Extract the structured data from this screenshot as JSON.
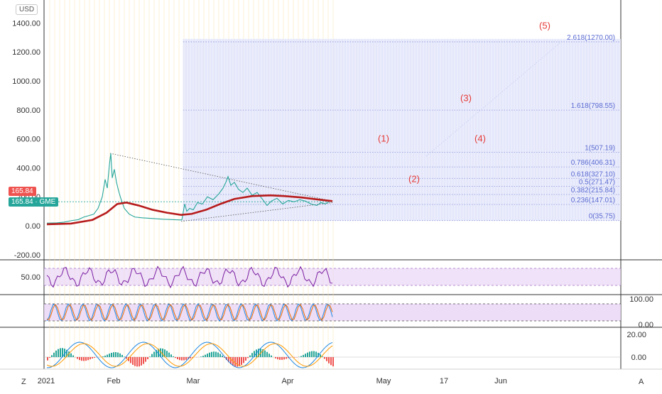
{
  "chart_data": {
    "type": "line",
    "currency_label": "USD",
    "symbol": "GME",
    "last_price": "165.84",
    "last_price_right": "165.84",
    "price_axis_ticks": [
      "1400.00",
      "1200.00",
      "1000.00",
      "800.00",
      "600.00",
      "400.00",
      "200.00",
      "0.00",
      "-200.00"
    ],
    "price_axis_values": [
      1400,
      1200,
      1000,
      800,
      600,
      400,
      200,
      0,
      -200
    ],
    "rsi_axis_tick": "50.00",
    "stoch_axis_ticks": [
      "100.00",
      "0.00"
    ],
    "macd_axis_ticks": [
      "20.00",
      "0.00"
    ],
    "time_axis_ticks": [
      "2021",
      "Feb",
      "Mar",
      "Apr",
      "May",
      "17",
      "Jun"
    ],
    "fib_levels": [
      {
        "label": "2.618(1270.00)",
        "ratio": 2.618,
        "price": 1270.0
      },
      {
        "label": "1.618(798.55)",
        "ratio": 1.618,
        "price": 798.55
      },
      {
        "label": "1(507.19)",
        "ratio": 1,
        "price": 507.19
      },
      {
        "label": "0.786(406.31)",
        "ratio": 0.786,
        "price": 406.31
      },
      {
        "label": "0.618(327.10)",
        "ratio": 0.618,
        "price": 327.1
      },
      {
        "label": "0.5(271.47)",
        "ratio": 0.5,
        "price": 271.47
      },
      {
        "label": "0.382(215.84)",
        "ratio": 0.382,
        "price": 215.84
      },
      {
        "label": "0.236(147.01)",
        "ratio": 0.236,
        "price": 147.01
      },
      {
        "label": "0(35.75)",
        "ratio": 0,
        "price": 35.75
      }
    ],
    "wave_labels": [
      {
        "text": "(1)",
        "price": 600
      },
      {
        "text": "(2)",
        "price": 320
      },
      {
        "text": "(3)",
        "price": 880
      },
      {
        "text": "(4)",
        "price": 600
      },
      {
        "text": "(5)",
        "price": 1380
      }
    ],
    "buttons": {
      "timezone": "Z",
      "auto_scale": "A"
    },
    "colors": {
      "price_line": "#26a69a",
      "moving_average": "#b71c1c",
      "fib_zone": "#e8eafc",
      "fib_text": "#5b6bd1",
      "wave_text": "#e53935",
      "last_price_tag": "#ef5350",
      "symbol_tag": "#26a69a",
      "rsi_band": "#e9d5f5",
      "rsi_line": "#7b1fa2"
    }
  }
}
